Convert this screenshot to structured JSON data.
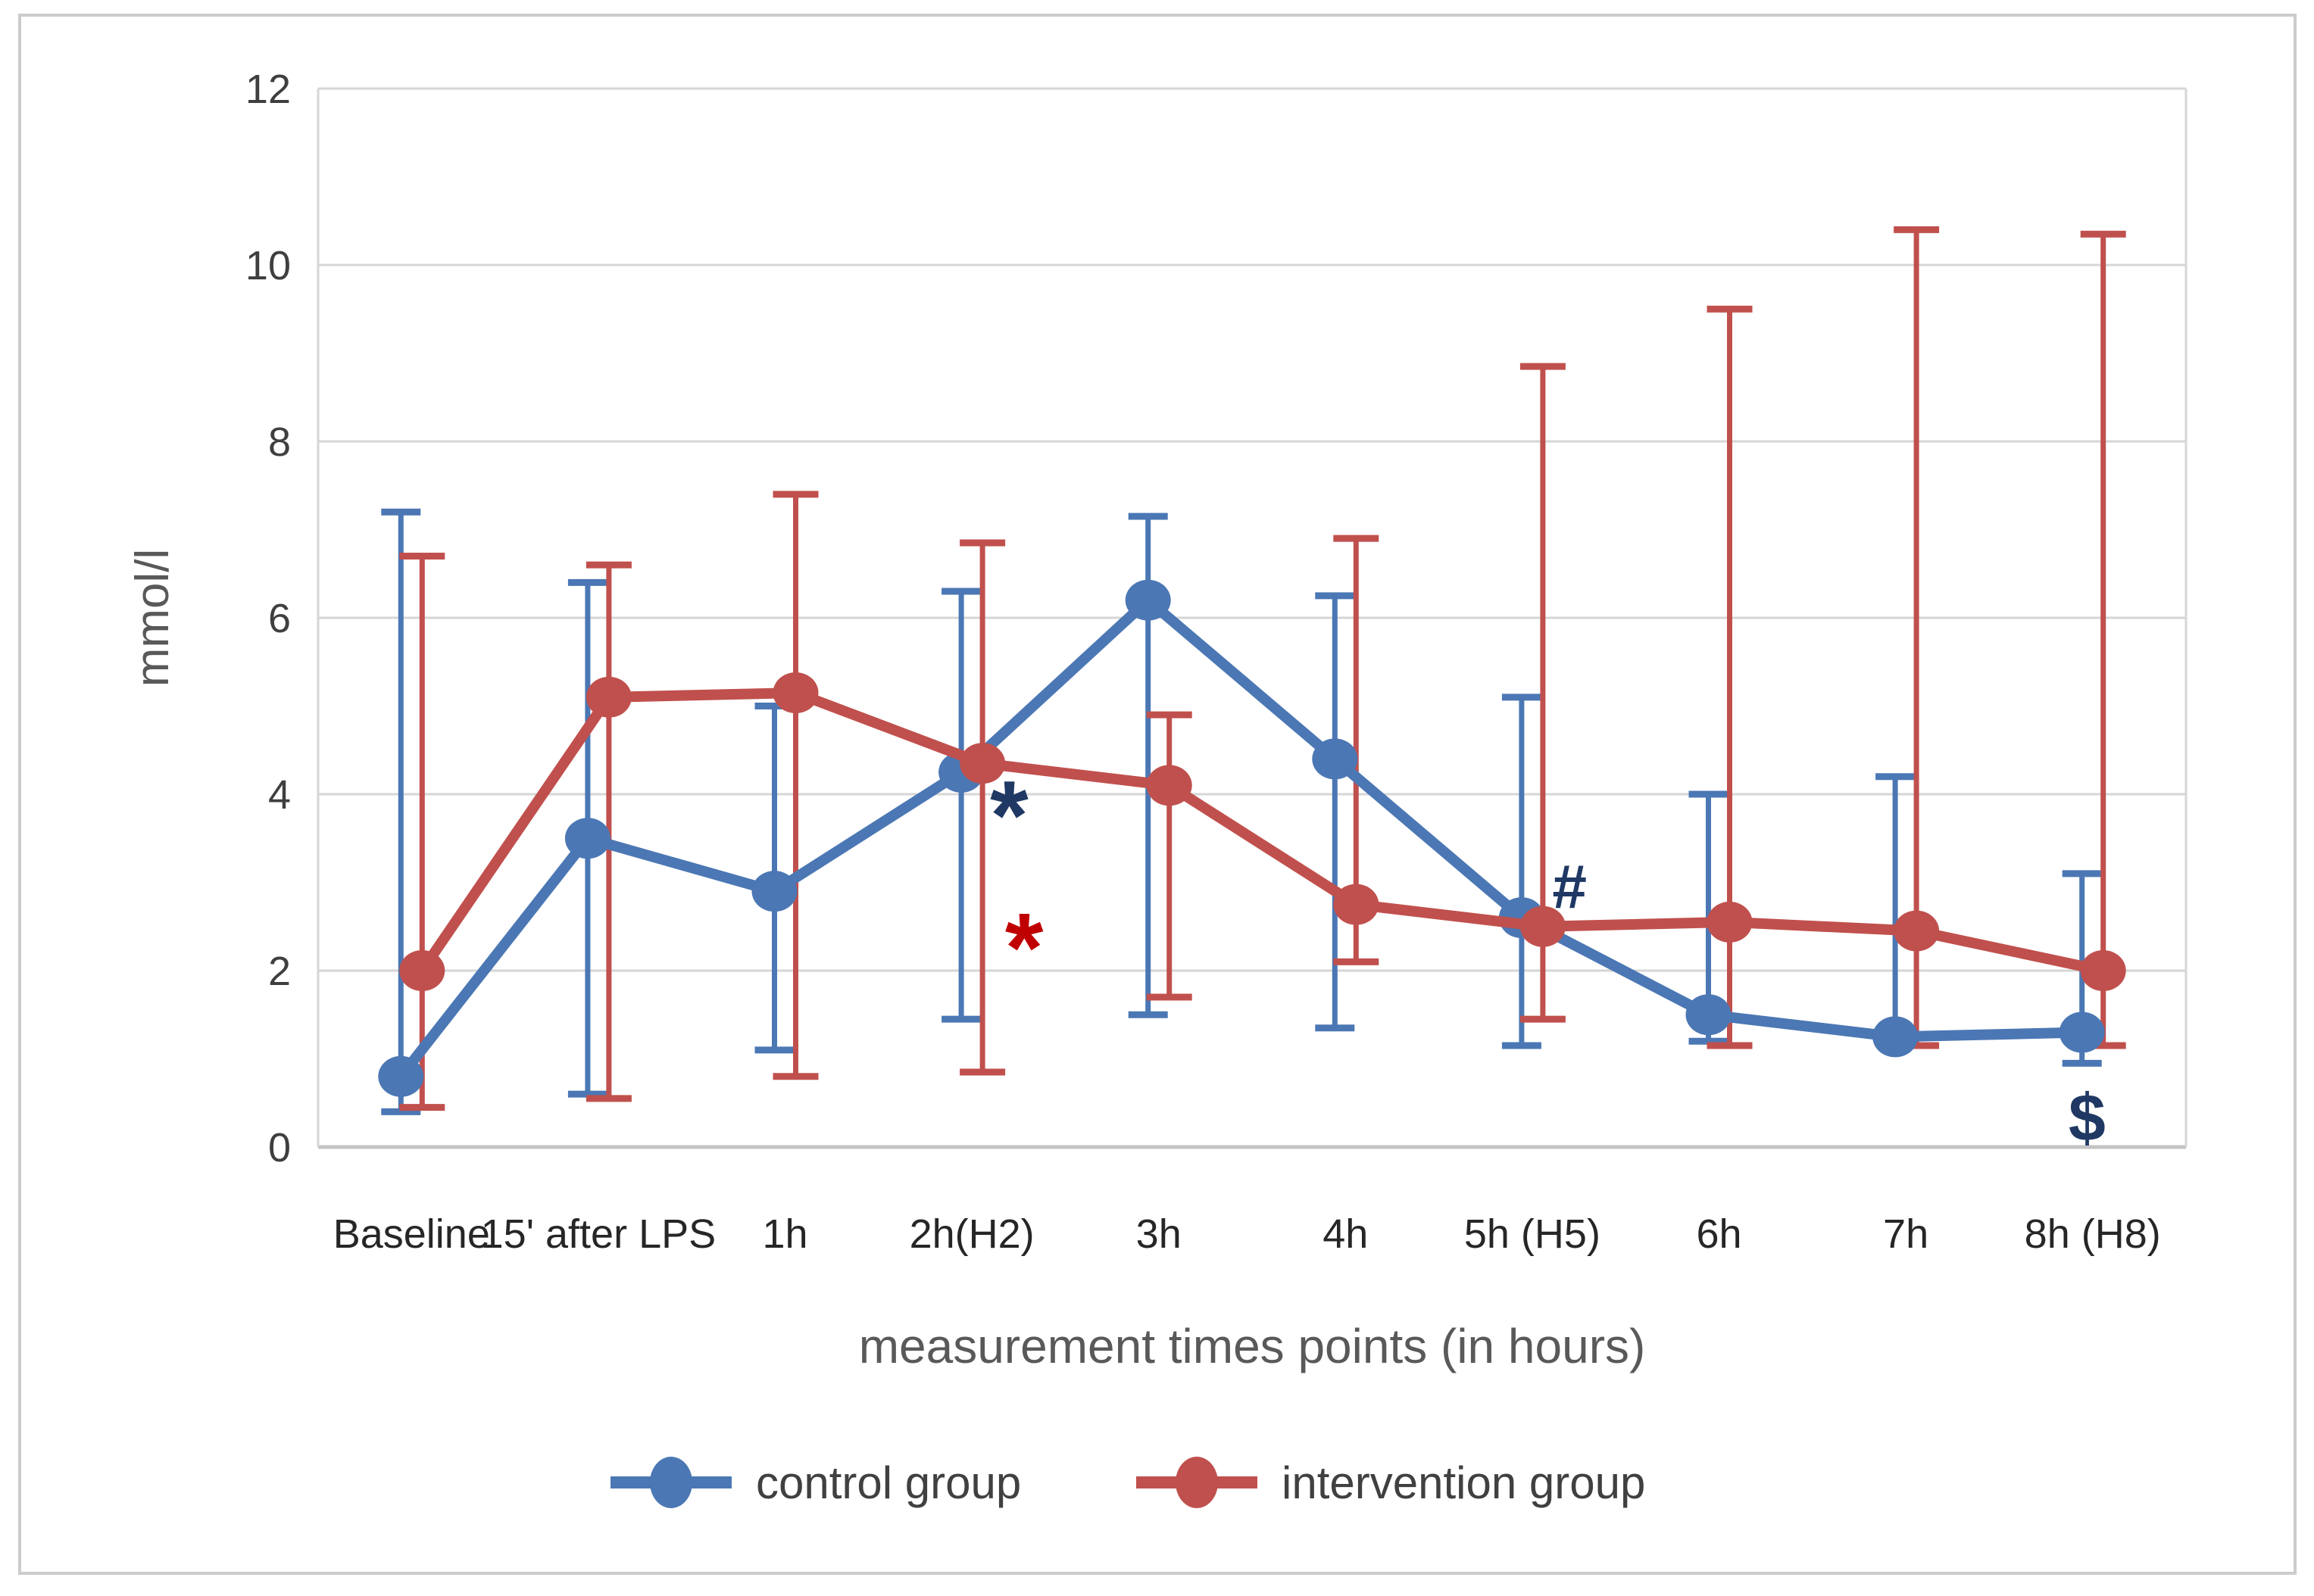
{
  "chart_data": {
    "type": "line",
    "title": "",
    "xlabel": "measurement times points (in hours)",
    "ylabel": "mmol/l",
    "categories": [
      "Baseline",
      "15' after LPS",
      "1h",
      "2h(H2)",
      "3h",
      "4h",
      "5h (H5)",
      "6h",
      "7h",
      "8h (H8)"
    ],
    "ylim": [
      0,
      12
    ],
    "ytick_step": 2,
    "yticks": [
      0,
      2,
      4,
      6,
      8,
      10,
      12
    ],
    "grid": true,
    "legend_position": "bottom",
    "series": [
      {
        "name": "control group",
        "color": "#4B77B4",
        "values": [
          0.8,
          3.5,
          2.9,
          4.25,
          6.2,
          4.4,
          2.6,
          1.5,
          1.25,
          1.3
        ],
        "err_low": [
          0.4,
          0.6,
          1.1,
          1.45,
          1.5,
          1.35,
          1.15,
          1.2,
          1.2,
          0.95
        ],
        "err_high": [
          7.2,
          6.4,
          5.0,
          6.3,
          7.15,
          6.25,
          5.1,
          4.0,
          4.2,
          3.1
        ]
      },
      {
        "name": "intervention group",
        "color": "#C0504D",
        "values": [
          2.0,
          5.1,
          5.15,
          4.35,
          4.1,
          2.75,
          2.5,
          2.55,
          2.45,
          2.0
        ],
        "err_low": [
          0.45,
          0.55,
          0.8,
          0.85,
          1.7,
          2.1,
          1.45,
          1.15,
          1.15,
          1.15
        ],
        "err_high": [
          6.7,
          6.6,
          7.4,
          6.85,
          4.9,
          6.9,
          8.85,
          9.5,
          10.4,
          10.35
        ]
      }
    ],
    "annotations": [
      {
        "text": "*",
        "color": "#1F3864",
        "x": 3.2,
        "y": 3.8,
        "size": 130
      },
      {
        "text": "*",
        "color": "#C00000",
        "x": 3.28,
        "y": 2.3,
        "size": 130
      },
      {
        "text": "#",
        "color": "#1F3864",
        "x": 6.2,
        "y": 2.95,
        "size": 82
      },
      {
        "text": "$",
        "color": "#1F3864",
        "x": 8.97,
        "y": 0.33,
        "size": 88
      }
    ],
    "colors": {
      "gridline": "#D6D6D6",
      "axis_line": "#C4C4C4",
      "tick_label": "#3F3F3F",
      "x_label": "#262626",
      "axis_title": "#595959",
      "figure_border": "#CCCCCC",
      "legend_text": "#404040"
    }
  }
}
